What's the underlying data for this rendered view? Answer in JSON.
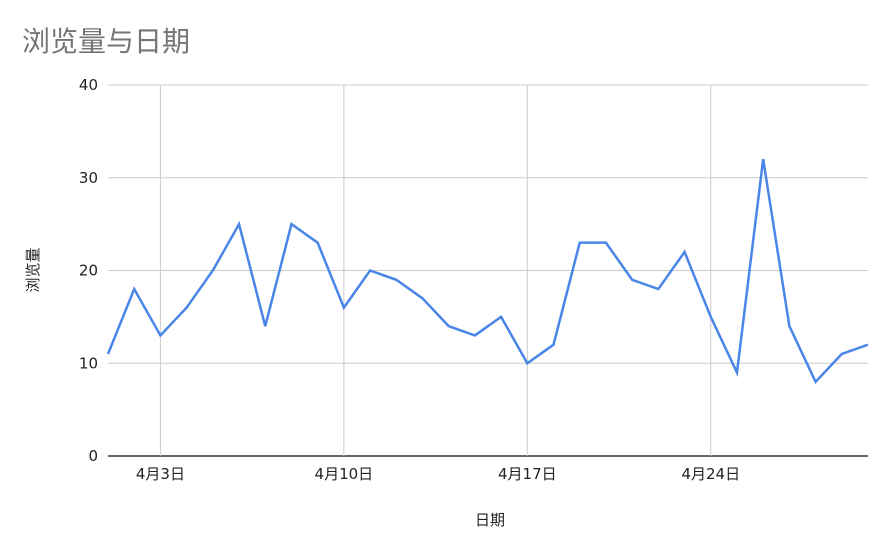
{
  "chart_data": {
    "type": "line",
    "title": "浏览量与日期",
    "xlabel": "日期",
    "ylabel": "浏览量",
    "ylim": [
      0,
      40
    ],
    "y_ticks": [
      0,
      10,
      20,
      30,
      40
    ],
    "x_ticks": [
      "4月3日",
      "4月10日",
      "4月17日",
      "4月24日"
    ],
    "grid": true,
    "legend": "none",
    "line_color": "#4a86e8",
    "series": [
      {
        "x": [
          "4月1日",
          "4月2日",
          "4月3日",
          "4月4日",
          "4月5日",
          "4月6日",
          "4月7日",
          "4月8日",
          "4月9日",
          "4月10日",
          "4月11日",
          "4月12日",
          "4月13日",
          "4月14日",
          "4月15日",
          "4月16日",
          "4月17日",
          "4月18日",
          "4月19日",
          "4月20日",
          "4月21日",
          "4月22日",
          "4月23日",
          "4月24日",
          "4月25日",
          "4月26日",
          "4月27日",
          "4月28日",
          "4月29日",
          "4月30日"
        ],
        "values": [
          11,
          18,
          13,
          16,
          20,
          25,
          14,
          25,
          23,
          16,
          20,
          19,
          17,
          14,
          13,
          15,
          10,
          12,
          23,
          23,
          19,
          18,
          22,
          15,
          9,
          32,
          14,
          8,
          11,
          12
        ]
      }
    ]
  }
}
